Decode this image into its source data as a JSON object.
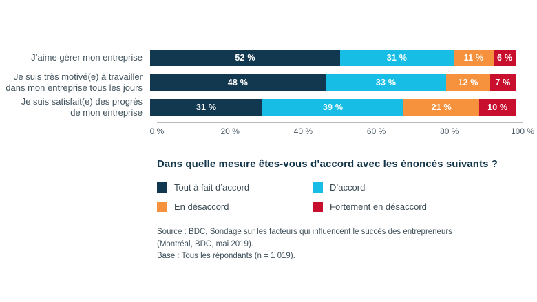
{
  "question": {
    "text": "Dans quelle mesure êtes-vous d’accord avec les énoncés suivants ?"
  },
  "chart_data": {
    "type": "bar",
    "orientation": "horizontal",
    "stacked": true,
    "categories": [
      "J’aime gérer mon entreprise",
      "Je suis très motivé(e) à travailler\ndans mon entreprise tous les jours",
      "Je suis satisfait(e) des progrès\nde mon entreprise"
    ],
    "series": [
      {
        "name": "Tout à fait d’accord",
        "color": "#12384F",
        "values": [
          52,
          48,
          31
        ]
      },
      {
        "name": "D’accord",
        "color": "#18BDE5",
        "values": [
          31,
          33,
          39
        ]
      },
      {
        "name": "En désaccord",
        "color": "#F6913D",
        "values": [
          11,
          12,
          21
        ]
      },
      {
        "name": "Fortement en désaccord",
        "color": "#C8102E",
        "values": [
          6,
          7,
          10
        ]
      }
    ],
    "value_label_suffix": " %",
    "x_ticks": [
      "0 %",
      "20 %",
      "40 %",
      "60 %",
      "80 %",
      "100 %"
    ],
    "xlim": [
      0,
      100
    ],
    "legend_position": "bottom",
    "grid": false
  },
  "source": {
    "lines": [
      "Source : BDC, Sondage sur les facteurs qui influencent le succès des entrepreneurs",
      "(Montréal, BDC, mai 2019).",
      "Base : Tous les répondants (n = 1 019)."
    ]
  }
}
